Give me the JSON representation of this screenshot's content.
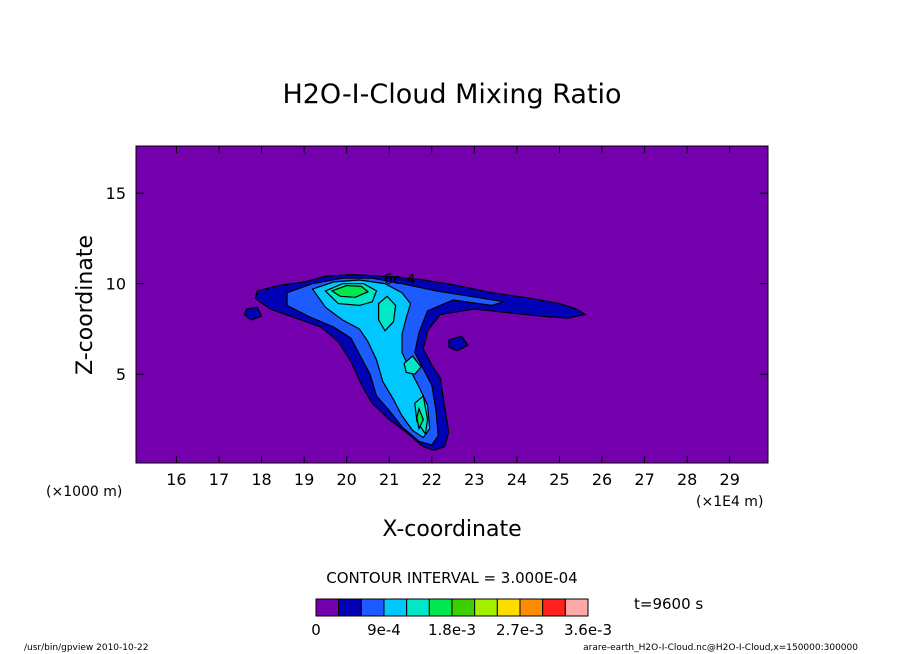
{
  "chart_data": {
    "type": "contour",
    "title": "H2O-I-Cloud Mixing Ratio",
    "xlabel": "X-coordinate",
    "ylabel": "Z-coordinate",
    "x_unit_left": "(×1000 m)",
    "x_unit_right": "(×1E4 m)",
    "xlim": [
      15.05,
      29.9
    ],
    "ylim": [
      0.1,
      17.6
    ],
    "x_ticks": [
      16,
      17,
      18,
      19,
      20,
      21,
      22,
      23,
      24,
      25,
      26,
      27,
      28,
      29
    ],
    "y_ticks": [
      5,
      10,
      15
    ],
    "contour_interval_text": "CONTOUR INTERVAL = 3.000E-04",
    "time_text": "t=9600 s",
    "contour_label": "6e-4",
    "colorbar": {
      "levels": [
        0,
        0.0003,
        0.0006,
        0.0009,
        0.0012,
        0.0015,
        0.0018,
        0.0021,
        0.0024,
        0.0027,
        0.003,
        0.0033,
        0.0036
      ],
      "colors": [
        "#7300ac",
        "#0000b4",
        "#1c5cff",
        "#00c8ff",
        "#00e8c8",
        "#00e850",
        "#3cd000",
        "#a0f000",
        "#ffdc00",
        "#ff8c00",
        "#ff2020",
        "#ffa8a8"
      ],
      "tick_labels": [
        "0",
        "9e-4",
        "1.8e-3",
        "2.7e-3",
        "3.6e-3"
      ],
      "tick_values": [
        0,
        0.0009,
        0.0018,
        0.0027,
        0.0036
      ]
    },
    "regions": [
      {
        "level": 0.0003,
        "polygon": [
          [
            17.9,
            9.6
          ],
          [
            18.4,
            9.9
          ],
          [
            19.0,
            10.1
          ],
          [
            19.5,
            10.4
          ],
          [
            20.1,
            10.5
          ],
          [
            21.0,
            10.4
          ],
          [
            21.8,
            10.2
          ],
          [
            22.6,
            9.9
          ],
          [
            23.4,
            9.5
          ],
          [
            24.3,
            9.2
          ],
          [
            25.0,
            8.9
          ],
          [
            25.4,
            8.6
          ],
          [
            25.6,
            8.3
          ],
          [
            25.2,
            8.1
          ],
          [
            24.6,
            8.2
          ],
          [
            23.8,
            8.4
          ],
          [
            23.0,
            8.6
          ],
          [
            22.2,
            8.3
          ],
          [
            21.9,
            7.4
          ],
          [
            21.8,
            6.4
          ],
          [
            22.0,
            5.5
          ],
          [
            22.2,
            4.8
          ],
          [
            22.3,
            3.2
          ],
          [
            22.4,
            1.8
          ],
          [
            22.3,
            1.0
          ],
          [
            22.05,
            0.8
          ],
          [
            21.8,
            1.0
          ],
          [
            21.4,
            1.8
          ],
          [
            21.0,
            2.5
          ],
          [
            20.6,
            3.4
          ],
          [
            20.35,
            4.4
          ],
          [
            20.1,
            5.7
          ],
          [
            19.8,
            6.8
          ],
          [
            19.4,
            7.6
          ],
          [
            18.8,
            8.1
          ],
          [
            18.2,
            8.6
          ],
          [
            17.85,
            9.2
          ]
        ]
      },
      {
        "level": 0.0003,
        "polygon": [
          [
            17.65,
            8.6
          ],
          [
            17.9,
            8.7
          ],
          [
            18.0,
            8.2
          ],
          [
            17.75,
            8.0
          ],
          [
            17.6,
            8.3
          ]
        ]
      },
      {
        "level": 0.0003,
        "polygon": [
          [
            22.4,
            6.9
          ],
          [
            22.7,
            7.1
          ],
          [
            22.85,
            6.6
          ],
          [
            22.6,
            6.3
          ],
          [
            22.4,
            6.5
          ]
        ]
      },
      {
        "level": 0.0006,
        "polygon": [
          [
            18.6,
            9.5
          ],
          [
            19.2,
            10.0
          ],
          [
            19.9,
            10.3
          ],
          [
            20.6,
            10.3
          ],
          [
            21.3,
            10.0
          ],
          [
            22.1,
            9.6
          ],
          [
            22.9,
            9.3
          ],
          [
            23.7,
            9.0
          ],
          [
            23.4,
            8.8
          ],
          [
            22.5,
            9.1
          ],
          [
            21.9,
            8.5
          ],
          [
            21.7,
            7.3
          ],
          [
            21.6,
            6.2
          ],
          [
            21.8,
            5.3
          ],
          [
            22.0,
            4.4
          ],
          [
            22.1,
            3.0
          ],
          [
            22.15,
            1.6
          ],
          [
            22.0,
            1.1
          ],
          [
            21.7,
            1.3
          ],
          [
            21.3,
            2.1
          ],
          [
            21.0,
            3.0
          ],
          [
            20.7,
            3.8
          ],
          [
            20.55,
            5.0
          ],
          [
            20.3,
            6.1
          ],
          [
            20.1,
            7.0
          ],
          [
            19.7,
            7.6
          ],
          [
            19.1,
            8.2
          ],
          [
            18.6,
            8.8
          ]
        ]
      },
      {
        "level": 0.0009,
        "polygon": [
          [
            19.2,
            9.7
          ],
          [
            19.7,
            10.1
          ],
          [
            20.3,
            10.2
          ],
          [
            20.9,
            10.0
          ],
          [
            21.3,
            9.5
          ],
          [
            21.5,
            8.9
          ],
          [
            21.4,
            8.1
          ],
          [
            21.3,
            7.2
          ],
          [
            21.3,
            6.2
          ],
          [
            21.5,
            5.2
          ],
          [
            21.7,
            4.3
          ],
          [
            21.9,
            3.3
          ],
          [
            21.95,
            2.0
          ],
          [
            21.8,
            1.5
          ],
          [
            21.55,
            1.9
          ],
          [
            21.3,
            2.7
          ],
          [
            21.1,
            3.6
          ],
          [
            20.85,
            4.6
          ],
          [
            20.7,
            5.8
          ],
          [
            20.5,
            6.8
          ],
          [
            20.3,
            7.5
          ],
          [
            19.9,
            8.0
          ],
          [
            19.5,
            8.7
          ]
        ]
      },
      {
        "level": 0.0012,
        "polygon": [
          [
            19.5,
            9.6
          ],
          [
            19.9,
            10.0
          ],
          [
            20.4,
            10.0
          ],
          [
            20.7,
            9.6
          ],
          [
            20.6,
            9.0
          ],
          [
            20.3,
            8.8
          ],
          [
            19.8,
            8.9
          ]
        ]
      },
      {
        "level": 0.0012,
        "polygon": [
          [
            20.75,
            8.9
          ],
          [
            20.95,
            9.3
          ],
          [
            21.15,
            8.8
          ],
          [
            21.1,
            7.9
          ],
          [
            20.9,
            7.4
          ],
          [
            20.75,
            8.0
          ]
        ]
      },
      {
        "level": 0.0012,
        "polygon": [
          [
            21.35,
            5.6
          ],
          [
            21.55,
            6.0
          ],
          [
            21.75,
            5.4
          ],
          [
            21.6,
            5.0
          ],
          [
            21.4,
            5.1
          ]
        ]
      },
      {
        "level": 0.0012,
        "polygon": [
          [
            21.8,
            3.8
          ],
          [
            21.9,
            2.5
          ],
          [
            21.85,
            1.7
          ],
          [
            21.65,
            2.4
          ],
          [
            21.6,
            3.4
          ]
        ]
      },
      {
        "level": 0.0015,
        "polygon": [
          [
            19.65,
            9.6
          ],
          [
            20.0,
            9.9
          ],
          [
            20.35,
            9.85
          ],
          [
            20.5,
            9.55
          ],
          [
            20.2,
            9.25
          ],
          [
            19.85,
            9.3
          ]
        ]
      },
      {
        "level": 0.0015,
        "polygon": [
          [
            21.7,
            3.1
          ],
          [
            21.8,
            2.5
          ],
          [
            21.7,
            2.0
          ],
          [
            21.65,
            2.6
          ]
        ]
      }
    ]
  }
}
